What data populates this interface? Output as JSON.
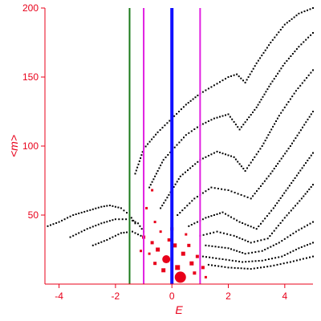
{
  "chart_data": {
    "type": "scatter",
    "title": "",
    "xlabel": "E",
    "ylabel": "<m>",
    "xlim": [
      -4.5,
      5
    ],
    "ylim": [
      0,
      200
    ],
    "x_ticks": [
      -4,
      -2,
      0,
      2,
      4
    ],
    "y_ticks": [
      50,
      100,
      150,
      200
    ],
    "grid": false,
    "legend": "none",
    "colors": {
      "axis": "#e8001a",
      "band_points": "#000000",
      "cluster_points": "#e8001a",
      "green_line": "#1a7a1a",
      "magenta_line": "#e020e0",
      "blue_line": "#1010ff"
    },
    "vertical_lines": [
      {
        "x": -1.5,
        "color": "#1a7a1a"
      },
      {
        "x": -1.0,
        "color": "#e020e0"
      },
      {
        "x": 0.0,
        "color": "#1010ff"
      },
      {
        "x": 1.0,
        "color": "#e020e0"
      }
    ],
    "series": [
      {
        "values": [
          [
            -4.4,
            42
          ],
          [
            -4.0,
            45
          ],
          [
            -3.5,
            50
          ],
          [
            -3.0,
            53
          ],
          [
            -2.5,
            56
          ],
          [
            -2.2,
            57
          ],
          [
            -1.8,
            55
          ],
          [
            -1.5,
            50
          ],
          [
            -1.3,
            44
          ]
        ]
      },
      {
        "values": [
          [
            -3.6,
            34
          ],
          [
            -3.0,
            40
          ],
          [
            -2.5,
            44
          ],
          [
            -2.0,
            47
          ],
          [
            -1.5,
            47
          ],
          [
            -1.2,
            44
          ],
          [
            -1.0,
            38
          ]
        ]
      },
      {
        "values": [
          [
            -2.8,
            28
          ],
          [
            -2.3,
            32
          ],
          [
            -1.8,
            37
          ],
          [
            -1.4,
            38
          ],
          [
            -1.1,
            35
          ]
        ]
      },
      {
        "values": [
          [
            -1.3,
            80
          ],
          [
            -1.0,
            98
          ],
          [
            -0.5,
            110
          ],
          [
            0,
            120
          ],
          [
            0.5,
            130
          ],
          [
            1.0,
            138
          ],
          [
            1.5,
            144
          ],
          [
            2.0,
            150
          ],
          [
            2.3,
            152
          ],
          [
            2.6,
            146
          ],
          [
            3.0,
            160
          ],
          [
            3.5,
            175
          ],
          [
            4.0,
            188
          ],
          [
            4.5,
            196
          ],
          [
            5.0,
            200
          ]
        ]
      },
      {
        "values": [
          [
            -0.8,
            70
          ],
          [
            -0.3,
            90
          ],
          [
            0.5,
            108
          ],
          [
            1.0,
            115
          ],
          [
            1.5,
            120
          ],
          [
            2.0,
            123
          ],
          [
            2.4,
            112
          ],
          [
            3.0,
            128
          ],
          [
            3.5,
            145
          ],
          [
            4.0,
            160
          ],
          [
            4.5,
            172
          ],
          [
            5.0,
            182
          ]
        ]
      },
      {
        "values": [
          [
            -0.4,
            55
          ],
          [
            0.3,
            78
          ],
          [
            1.0,
            90
          ],
          [
            1.6,
            96
          ],
          [
            2.2,
            92
          ],
          [
            2.6,
            82
          ],
          [
            3.2,
            100
          ],
          [
            3.8,
            122
          ],
          [
            4.4,
            140
          ],
          [
            5.0,
            155
          ]
        ]
      },
      {
        "values": [
          [
            0.2,
            50
          ],
          [
            0.8,
            62
          ],
          [
            1.4,
            70
          ],
          [
            2.0,
            68
          ],
          [
            2.8,
            62
          ],
          [
            3.5,
            80
          ],
          [
            4.2,
            100
          ],
          [
            5.0,
            125
          ]
        ]
      },
      {
        "values": [
          [
            0.6,
            42
          ],
          [
            1.2,
            48
          ],
          [
            1.8,
            52
          ],
          [
            2.4,
            45
          ],
          [
            3.0,
            40
          ],
          [
            3.6,
            55
          ],
          [
            4.3,
            75
          ],
          [
            5.0,
            95
          ]
        ]
      },
      {
        "values": [
          [
            1.0,
            35
          ],
          [
            1.6,
            38
          ],
          [
            2.2,
            35
          ],
          [
            2.8,
            30
          ],
          [
            3.4,
            33
          ],
          [
            4.0,
            48
          ],
          [
            4.6,
            62
          ],
          [
            5.0,
            72
          ]
        ]
      },
      {
        "values": [
          [
            1.2,
            28
          ],
          [
            2.0,
            26
          ],
          [
            2.6,
            22
          ],
          [
            3.2,
            24
          ],
          [
            3.8,
            30
          ],
          [
            4.4,
            38
          ],
          [
            5.0,
            45
          ]
        ]
      },
      {
        "values": [
          [
            1.1,
            20
          ],
          [
            1.8,
            18
          ],
          [
            2.5,
            16
          ],
          [
            3.2,
            17
          ],
          [
            3.9,
            20
          ],
          [
            4.5,
            26
          ],
          [
            5.0,
            30
          ]
        ]
      },
      {
        "values": [
          [
            1.3,
            14
          ],
          [
            2.0,
            12
          ],
          [
            2.8,
            11
          ],
          [
            3.5,
            13
          ],
          [
            4.2,
            16
          ],
          [
            5.0,
            20
          ]
        ]
      }
    ],
    "red_cluster": [
      {
        "x": -0.2,
        "y": 18,
        "size": 10
      },
      {
        "x": 0.3,
        "y": 5,
        "size": 14
      },
      {
        "x": -0.5,
        "y": 25,
        "size": 5
      },
      {
        "x": -0.7,
        "y": 30,
        "size": 4
      },
      {
        "x": -1.0,
        "y": 34,
        "size": 4
      },
      {
        "x": -0.6,
        "y": 45,
        "size": 3
      },
      {
        "x": -0.9,
        "y": 55,
        "size": 3
      },
      {
        "x": -0.7,
        "y": 68,
        "size": 3
      },
      {
        "x": 0.1,
        "y": 28,
        "size": 5
      },
      {
        "x": 0.4,
        "y": 22,
        "size": 5
      },
      {
        "x": 0.7,
        "y": 15,
        "size": 5
      },
      {
        "x": 0.6,
        "y": 28,
        "size": 4
      },
      {
        "x": 0.9,
        "y": 20,
        "size": 4
      },
      {
        "x": 1.1,
        "y": 12,
        "size": 4
      },
      {
        "x": 1.2,
        "y": 5,
        "size": 3
      },
      {
        "x": -0.3,
        "y": 10,
        "size": 5
      },
      {
        "x": -0.6,
        "y": 15,
        "size": 4
      },
      {
        "x": 0.0,
        "y": 40,
        "size": 4
      },
      {
        "x": -0.4,
        "y": 38,
        "size": 3
      },
      {
        "x": 0.2,
        "y": 12,
        "size": 6
      },
      {
        "x": 0.8,
        "y": 8,
        "size": 4
      },
      {
        "x": -0.1,
        "y": 32,
        "size": 4
      },
      {
        "x": -0.8,
        "y": 22,
        "size": 3
      },
      {
        "x": 0.5,
        "y": 36,
        "size": 3
      },
      {
        "x": -1.1,
        "y": 24,
        "size": 3
      }
    ]
  }
}
